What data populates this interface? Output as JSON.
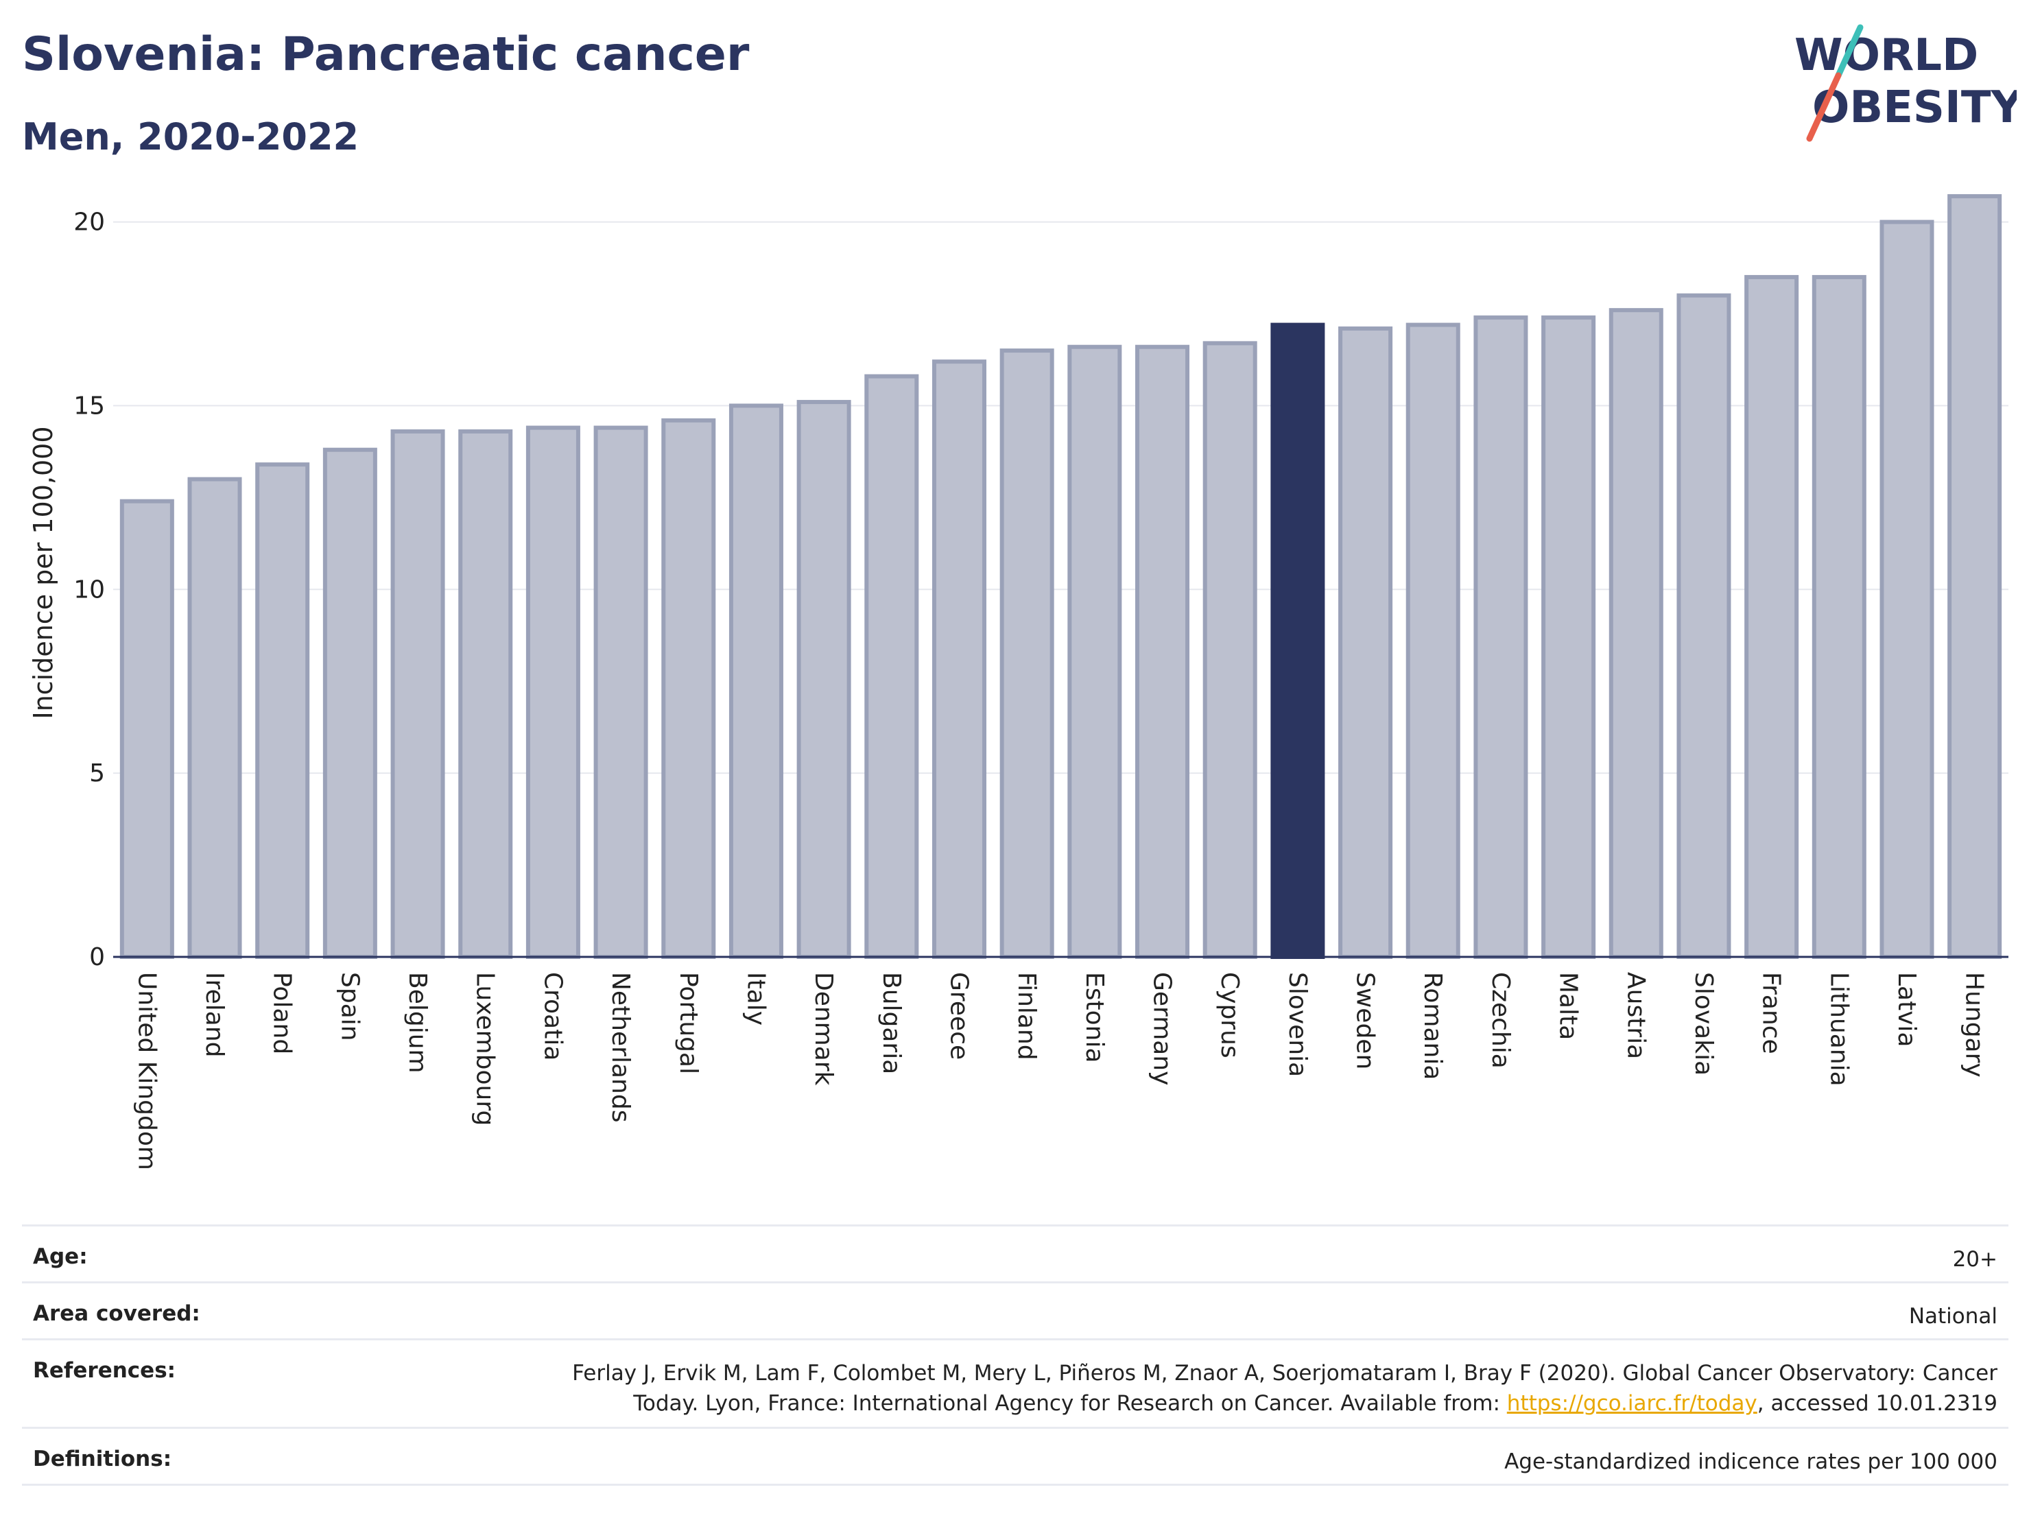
{
  "header": {
    "title": "Slovenia: Pancreatic cancer",
    "subtitle": "Men, 2020-2022"
  },
  "logo": {
    "line1": "WORLD",
    "line2": "OBESITY",
    "colors": {
      "text": "#2b3560",
      "accent_teal": "#3dbfb8",
      "accent_red": "#e8604c"
    }
  },
  "chart_data": {
    "type": "bar",
    "ylabel": "Incidence per 100,000",
    "ylim": [
      0,
      21
    ],
    "yticks": [
      0,
      5,
      10,
      15,
      20
    ],
    "grid": true,
    "highlight": "Slovenia",
    "colors": {
      "bar": "#bcc0cf",
      "bar_edge": "#9aa1b8",
      "highlight": "#2b3560"
    },
    "categories": [
      "United Kingdom",
      "Ireland",
      "Poland",
      "Spain",
      "Belgium",
      "Luxembourg",
      "Croatia",
      "Netherlands",
      "Portugal",
      "Italy",
      "Denmark",
      "Bulgaria",
      "Greece",
      "Finland",
      "Estonia",
      "Germany",
      "Cyprus",
      "Slovenia",
      "Sweden",
      "Romania",
      "Czechia",
      "Malta",
      "Austria",
      "Slovakia",
      "France",
      "Lithuania",
      "Latvia",
      "Hungary"
    ],
    "values": [
      12.4,
      13.0,
      13.4,
      13.8,
      14.3,
      14.3,
      14.4,
      14.4,
      14.6,
      15.0,
      15.1,
      15.8,
      16.2,
      16.5,
      16.6,
      16.6,
      16.7,
      17.2,
      17.1,
      17.2,
      17.4,
      17.4,
      17.6,
      18.0,
      18.5,
      18.5,
      20.0,
      20.7
    ]
  },
  "info": {
    "age_label": "Age:",
    "age_value": "20+",
    "area_label": "Area covered:",
    "area_value": "National",
    "references_label": "References:",
    "references_text_1": "Ferlay J, Ervik M, Lam F, Colombet M, Mery L, Piñeros M, Znaor A, Soerjomataram I, Bray F (2020). Global Cancer Observatory: Cancer Today. Lyon, France: International Agency for Research on Cancer. Available from: ",
    "references_link": "https://gco.iarc.fr/today",
    "references_text_2": ", accessed 10.01.2319",
    "definitions_label": "Definitions:",
    "definitions_value": "Age-standardized indicence rates per 100 000"
  }
}
